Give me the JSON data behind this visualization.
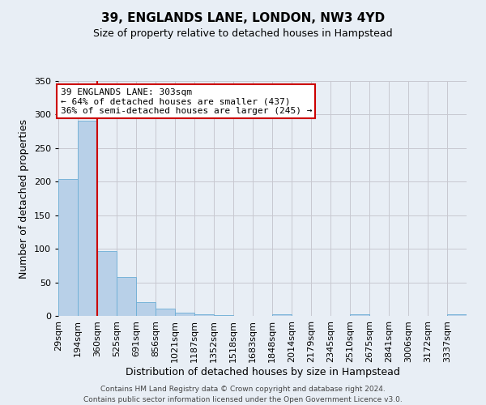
{
  "title": "39, ENGLANDS LANE, LONDON, NW3 4YD",
  "subtitle": "Size of property relative to detached houses in Hampstead",
  "xlabel": "Distribution of detached houses by size in Hampstead",
  "ylabel": "Number of detached properties",
  "bin_labels": [
    "29sqm",
    "194sqm",
    "360sqm",
    "525sqm",
    "691sqm",
    "856sqm",
    "1021sqm",
    "1187sqm",
    "1352sqm",
    "1518sqm",
    "1683sqm",
    "1848sqm",
    "2014sqm",
    "2179sqm",
    "2345sqm",
    "2510sqm",
    "2675sqm",
    "2841sqm",
    "3006sqm",
    "3172sqm",
    "3337sqm"
  ],
  "bar_heights": [
    204,
    291,
    96,
    58,
    20,
    11,
    5,
    2,
    1,
    0,
    0,
    3,
    0,
    0,
    0,
    2,
    0,
    0,
    0,
    0,
    2
  ],
  "ylim": [
    0,
    350
  ],
  "yticks": [
    0,
    50,
    100,
    150,
    200,
    250,
    300,
    350
  ],
  "property_line_x": 2.0,
  "bar_color": "#b8d0e8",
  "bar_edge_color": "#6baed6",
  "line_color": "#cc0000",
  "annotation_text": "39 ENGLANDS LANE: 303sqm\n← 64% of detached houses are smaller (437)\n36% of semi-detached houses are larger (245) →",
  "annotation_box_color": "#ffffff",
  "annotation_box_edge": "#cc0000",
  "footer_line1": "Contains HM Land Registry data © Crown copyright and database right 2024.",
  "footer_line2": "Contains public sector information licensed under the Open Government Licence v3.0.",
  "background_color": "#e8eef5",
  "plot_bg_color": "#e8eef5",
  "grid_color": "#c8c8d0",
  "title_fontsize": 11,
  "subtitle_fontsize": 9,
  "xlabel_fontsize": 9,
  "ylabel_fontsize": 9,
  "tick_fontsize": 8,
  "annotation_fontsize": 8
}
